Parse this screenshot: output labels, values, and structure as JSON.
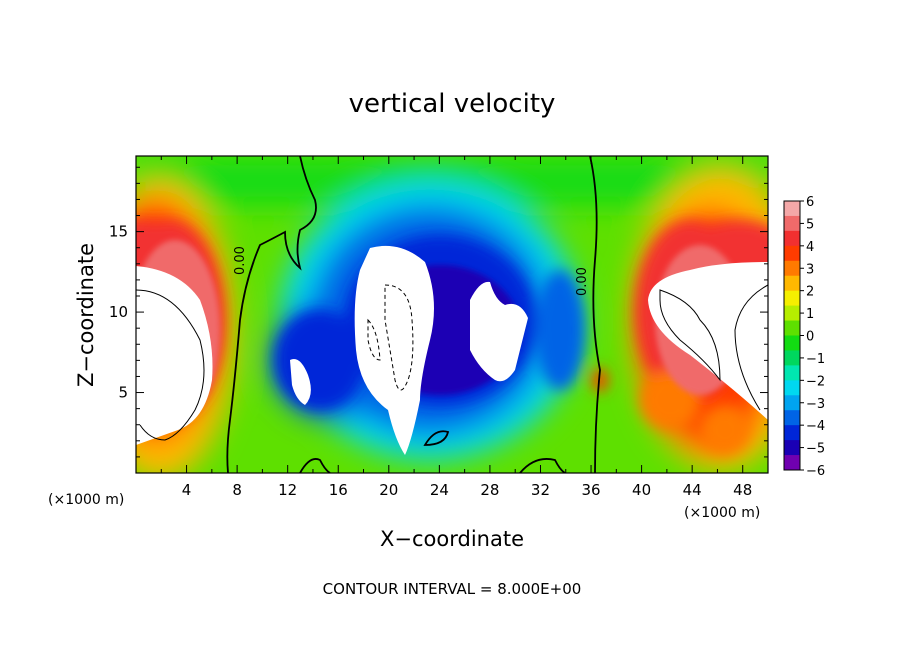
{
  "chart_data": {
    "type": "heatmap",
    "title": "vertical velocity",
    "xlabel": "X−coordinate",
    "ylabel": "Z−coordinate",
    "x_unit": "(×1000 m)",
    "z_unit": "(×1000 m)",
    "xlim": [
      0,
      50
    ],
    "ylim": [
      0,
      19.7
    ],
    "x_ticks": [
      4,
      8,
      12,
      16,
      20,
      24,
      28,
      32,
      36,
      40,
      44,
      48
    ],
    "y_ticks": [
      5,
      10,
      15
    ],
    "contour_label": "0.00",
    "footnote": "CONTOUR INTERVAL = 8.000E+00",
    "colorbar": {
      "range": [
        -6,
        6
      ],
      "ticks": [
        "6",
        "5",
        "4",
        "3",
        "2",
        "1",
        "0",
        "−1",
        "−2",
        "−3",
        "−4",
        "−5",
        "−6"
      ],
      "colors": [
        "#f4a8a8",
        "#f06a6a",
        "#f23030",
        "#ff3c00",
        "#ff7a00",
        "#ffb800",
        "#f5ef00",
        "#b6ee00",
        "#5ee000",
        "#12dc12",
        "#00d75e",
        "#00e6b0",
        "#00d8f0",
        "#00a4f0",
        "#0064e6",
        "#0026d8",
        "#1a00b4",
        "#7000b0"
      ],
      "saturated_above": "#ffffff"
    },
    "features": [
      {
        "kind": "updraft_core",
        "x": 2.5,
        "z": 7.5,
        "value": ">6"
      },
      {
        "kind": "updraft_core",
        "x": 46.5,
        "z": 9.5,
        "value": ">6"
      },
      {
        "kind": "downdraft_core",
        "x": 21.5,
        "z": 9.0,
        "value": "<-6"
      },
      {
        "kind": "downdraft_core",
        "x": 28.5,
        "z": 8.5,
        "value": "<-6"
      },
      {
        "kind": "downdraft_core",
        "x": 13.0,
        "z": 6.5,
        "value": "<-6"
      }
    ]
  }
}
